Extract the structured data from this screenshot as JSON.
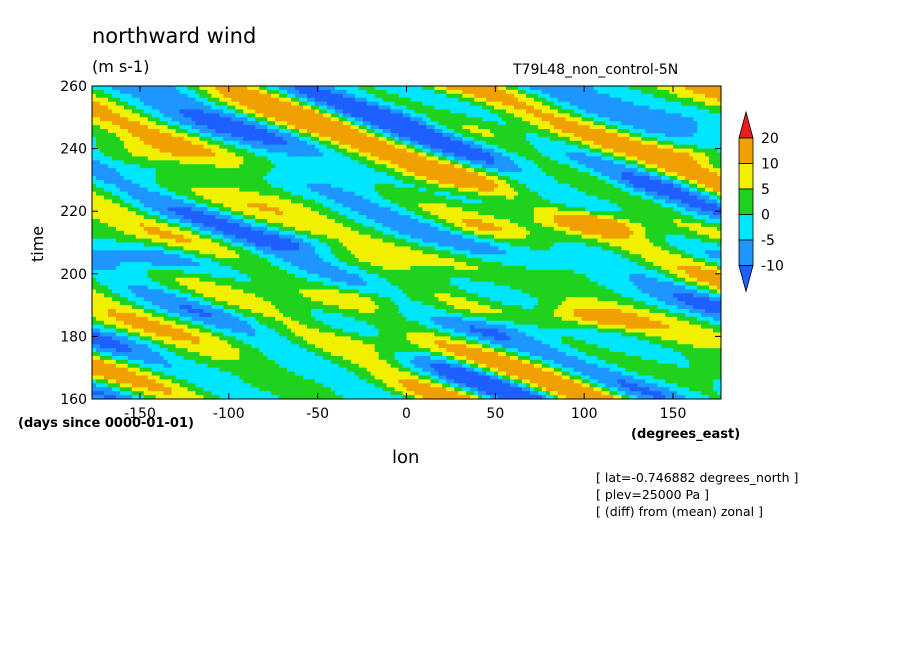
{
  "header": {
    "title": "northward wind",
    "units": "(m s-1)",
    "run": "T79L48_non_control-5N"
  },
  "notes": [
    "[ lat=-0.746882 degrees_north ]",
    "[ plev=25000 Pa ]",
    "[ (diff) from (mean) zonal ]"
  ],
  "chart_data": {
    "type": "heatmap",
    "title": "northward wind",
    "subtitle": "(m s-1)",
    "xlabel": "lon",
    "ylabel": "time",
    "x_units": "(degrees_east)",
    "y_units": "(days since 0000-01-01)",
    "xlim": [
      -177,
      177
    ],
    "ylim": [
      160,
      260
    ],
    "x_ticks": [
      -150,
      -100,
      -50,
      0,
      50,
      100,
      150
    ],
    "y_ticks": [
      160,
      180,
      200,
      220,
      240,
      260
    ],
    "colorbar": {
      "levels": [
        -10,
        -5,
        0,
        5,
        10,
        20
      ],
      "level_labels": [
        "-10",
        "-5",
        "0",
        "5",
        "10",
        "20"
      ],
      "colors": [
        "#1e5fff",
        "#1e96ff",
        "#00e6ff",
        "#1ed21e",
        "#f0f000",
        "#f0a000",
        "#e61e1e"
      ],
      "extend": "both"
    },
    "features": [
      {
        "lon": 110,
        "time": 216,
        "value": 20
      },
      {
        "lon": 100,
        "time": 186,
        "value": 15
      },
      {
        "lon": 30,
        "time": 230,
        "value": 12
      },
      {
        "lon": 165,
        "time": 238,
        "value": 14
      },
      {
        "lon": -150,
        "time": 238,
        "value": 10
      },
      {
        "lon": -30,
        "time": 192,
        "value": 10
      },
      {
        "lon": -10,
        "time": 177,
        "value": 9
      },
      {
        "lon": -130,
        "time": 173,
        "value": 8
      },
      {
        "lon": 40,
        "time": 214,
        "value": 8
      },
      {
        "lon": -60,
        "time": 210,
        "value": -12
      },
      {
        "lon": -140,
        "time": 205,
        "value": -11
      },
      {
        "lon": 60,
        "time": 183,
        "value": -10
      },
      {
        "lon": 140,
        "time": 228,
        "value": -9
      },
      {
        "lon": 0,
        "time": 250,
        "value": -8
      }
    ]
  }
}
